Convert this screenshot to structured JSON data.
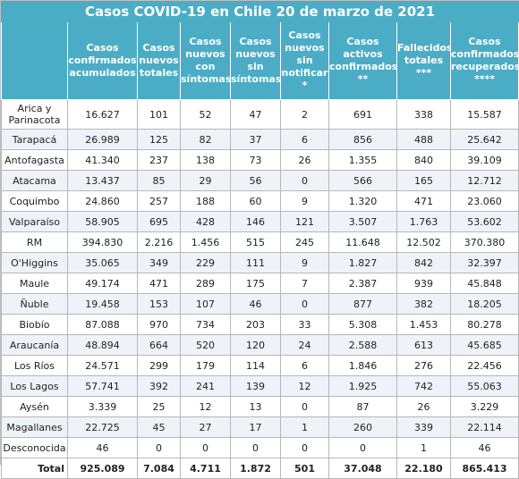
{
  "title": "Casos COVID-19 en Chile 20 de marzo de 2021",
  "headers": [
    "Casos confirmados acumulados",
    "Casos nuevos totales",
    "Casos nuevos con síntomas",
    "Casos nuevos sin síntomas",
    "Casos nuevos sin notificar *",
    "Casos activos confirmados **",
    "Fallecidos totales ***",
    "Casos confirmados recuperados ****"
  ],
  "rows": [
    {
      "region": "Arica y Parinacota",
      "values": [
        "16.627",
        "101",
        "52",
        "47",
        "2",
        "691",
        "338",
        "15.587"
      ]
    },
    {
      "region": "Tarapacá",
      "values": [
        "26.989",
        "125",
        "82",
        "37",
        "6",
        "856",
        "488",
        "25.642"
      ]
    },
    {
      "region": "Antofagasta",
      "values": [
        "41.340",
        "237",
        "138",
        "73",
        "26",
        "1.355",
        "840",
        "39.109"
      ]
    },
    {
      "region": "Atacama",
      "values": [
        "13.437",
        "85",
        "29",
        "56",
        "0",
        "566",
        "165",
        "12.712"
      ]
    },
    {
      "region": "Coquimbo",
      "values": [
        "24.860",
        "257",
        "188",
        "60",
        "9",
        "1.320",
        "471",
        "23.060"
      ]
    },
    {
      "region": "Valparaíso",
      "values": [
        "58.905",
        "695",
        "428",
        "146",
        "121",
        "3.507",
        "1.763",
        "53.602"
      ]
    },
    {
      "region": "RM",
      "values": [
        "394.830",
        "2.216",
        "1.456",
        "515",
        "245",
        "11.648",
        "12.502",
        "370.380"
      ]
    },
    {
      "region": "O'Higgins",
      "values": [
        "35.065",
        "349",
        "229",
        "111",
        "9",
        "1.827",
        "842",
        "32.397"
      ]
    },
    {
      "region": "Maule",
      "values": [
        "49.174",
        "471",
        "289",
        "175",
        "7",
        "2.387",
        "939",
        "45.848"
      ]
    },
    {
      "region": "Ñuble",
      "values": [
        "19.458",
        "153",
        "107",
        "46",
        "0",
        "877",
        "382",
        "18.205"
      ]
    },
    {
      "region": "Biobío",
      "values": [
        "87.088",
        "970",
        "734",
        "203",
        "33",
        "5.308",
        "1.453",
        "80.278"
      ]
    },
    {
      "region": "Araucanía",
      "values": [
        "48.894",
        "664",
        "520",
        "120",
        "24",
        "2.588",
        "613",
        "45.685"
      ]
    },
    {
      "region": "Los Ríos",
      "values": [
        "24.571",
        "299",
        "179",
        "114",
        "6",
        "1.846",
        "276",
        "22.456"
      ]
    },
    {
      "region": "Los Lagos",
      "values": [
        "57.741",
        "392",
        "241",
        "139",
        "12",
        "1.925",
        "742",
        "55.063"
      ]
    },
    {
      "region": "Aysén",
      "values": [
        "3.339",
        "25",
        "12",
        "13",
        "0",
        "87",
        "26",
        "3.229"
      ]
    },
    {
      "region": "Magallanes",
      "values": [
        "22.725",
        "45",
        "27",
        "17",
        "1",
        "260",
        "339",
        "22.114"
      ]
    },
    {
      "region": "Desconocida",
      "values": [
        "46",
        "0",
        "0",
        "0",
        "0",
        "0",
        "1",
        "46"
      ]
    }
  ],
  "total": {
    "label": "Total",
    "values": [
      "925.089",
      "7.084",
      "4.711",
      "1.872",
      "501",
      "37.048",
      "22.180",
      "865.413"
    ]
  }
}
